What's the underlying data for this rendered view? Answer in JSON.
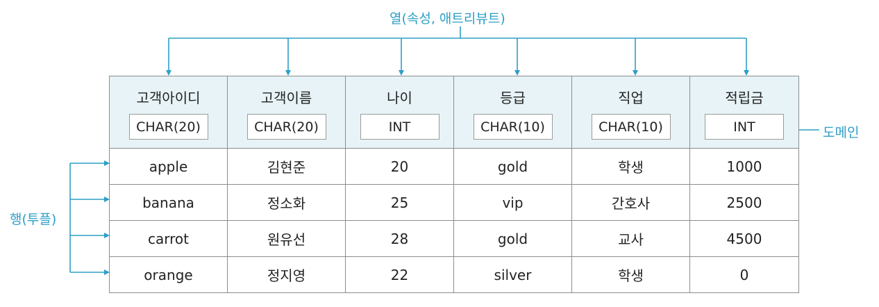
{
  "labels": {
    "column": "열(속성, 애트리뷰트)",
    "domain": "도메인",
    "row": "행(투플)"
  },
  "colors": {
    "accent": "#2c9fc6",
    "header_bg": "#e7f3f7",
    "border": "#8c8c8c"
  },
  "columns": [
    {
      "name": "고객아이디",
      "domain": "CHAR(20)"
    },
    {
      "name": "고객이름",
      "domain": "CHAR(20)"
    },
    {
      "name": "나이",
      "domain": "INT"
    },
    {
      "name": "등급",
      "domain": "CHAR(10)"
    },
    {
      "name": "직업",
      "domain": "CHAR(10)"
    },
    {
      "name": "적립금",
      "domain": "INT"
    }
  ],
  "rows": [
    [
      "apple",
      "김현준",
      "20",
      "gold",
      "학생",
      "1000"
    ],
    [
      "banana",
      "정소화",
      "25",
      "vip",
      "간호사",
      "2500"
    ],
    [
      "carrot",
      "원유선",
      "28",
      "gold",
      "교사",
      "4500"
    ],
    [
      "orange",
      "정지영",
      "22",
      "silver",
      "학생",
      "0"
    ]
  ]
}
